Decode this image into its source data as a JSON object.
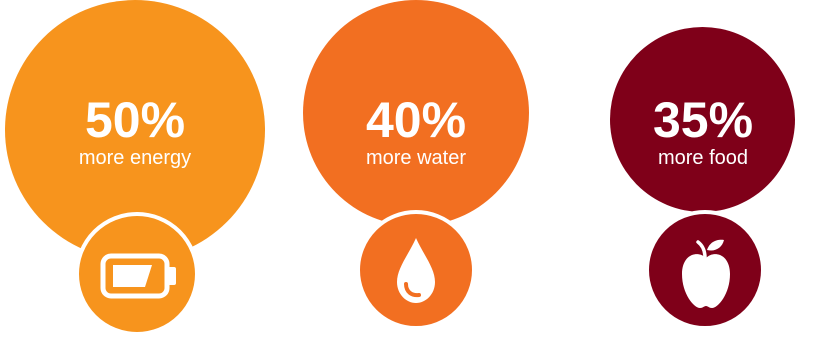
{
  "stats": [
    {
      "id": "energy",
      "value": "50%",
      "label": "more energy",
      "icon": "battery-icon",
      "color": "#F7941D"
    },
    {
      "id": "water",
      "value": "40%",
      "label": "more water",
      "icon": "water-drop-icon",
      "color": "#F26F21"
    },
    {
      "id": "food",
      "value": "35%",
      "label": "more food",
      "icon": "apple-icon",
      "color": "#7F0019"
    }
  ]
}
